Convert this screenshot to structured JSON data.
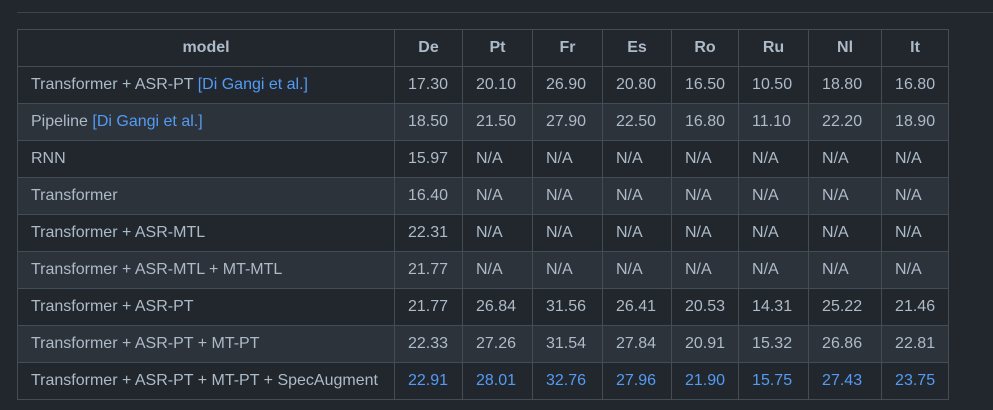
{
  "colors": {
    "background": "#22272e",
    "row_alt": "#2d333b",
    "border": "#444c56",
    "divider": "#3d444d",
    "text": "#adbac7",
    "accent": "#539bf5"
  },
  "table": {
    "columns": [
      "model",
      "De",
      "Pt",
      "Fr",
      "Es",
      "Ro",
      "Ru",
      "Nl",
      "It"
    ],
    "rows": [
      {
        "model": "Transformer + ASR-PT",
        "link": "[Di Gangi et al.]",
        "highlight": false,
        "values": [
          "17.30",
          "20.10",
          "26.90",
          "20.80",
          "16.50",
          "10.50",
          "18.80",
          "16.80"
        ]
      },
      {
        "model": "Pipeline",
        "link": "[Di Gangi et al.]",
        "highlight": false,
        "values": [
          "18.50",
          "21.50",
          "27.90",
          "22.50",
          "16.80",
          "11.10",
          "22.20",
          "18.90"
        ]
      },
      {
        "model": "RNN",
        "link": "",
        "highlight": false,
        "values": [
          "15.97",
          "N/A",
          "N/A",
          "N/A",
          "N/A",
          "N/A",
          "N/A",
          "N/A"
        ]
      },
      {
        "model": "Transformer",
        "link": "",
        "highlight": false,
        "values": [
          "16.40",
          "N/A",
          "N/A",
          "N/A",
          "N/A",
          "N/A",
          "N/A",
          "N/A"
        ]
      },
      {
        "model": "Transformer + ASR-MTL",
        "link": "",
        "highlight": false,
        "values": [
          "22.31",
          "N/A",
          "N/A",
          "N/A",
          "N/A",
          "N/A",
          "N/A",
          "N/A"
        ]
      },
      {
        "model": "Transformer + ASR-MTL + MT-MTL",
        "link": "",
        "highlight": false,
        "values": [
          "21.77",
          "N/A",
          "N/A",
          "N/A",
          "N/A",
          "N/A",
          "N/A",
          "N/A"
        ]
      },
      {
        "model": "Transformer + ASR-PT",
        "link": "",
        "highlight": false,
        "values": [
          "21.77",
          "26.84",
          "31.56",
          "26.41",
          "20.53",
          "14.31",
          "25.22",
          "21.46"
        ]
      },
      {
        "model": "Transformer + ASR-PT + MT-PT",
        "link": "",
        "highlight": false,
        "values": [
          "22.33",
          "27.26",
          "31.54",
          "27.84",
          "20.91",
          "15.32",
          "26.86",
          "22.81"
        ]
      },
      {
        "model": "Transformer + ASR-PT + MT-PT + SpecAugment",
        "link": "",
        "highlight": true,
        "values": [
          "22.91",
          "28.01",
          "32.76",
          "27.96",
          "21.90",
          "15.75",
          "27.43",
          "23.75"
        ]
      }
    ]
  }
}
